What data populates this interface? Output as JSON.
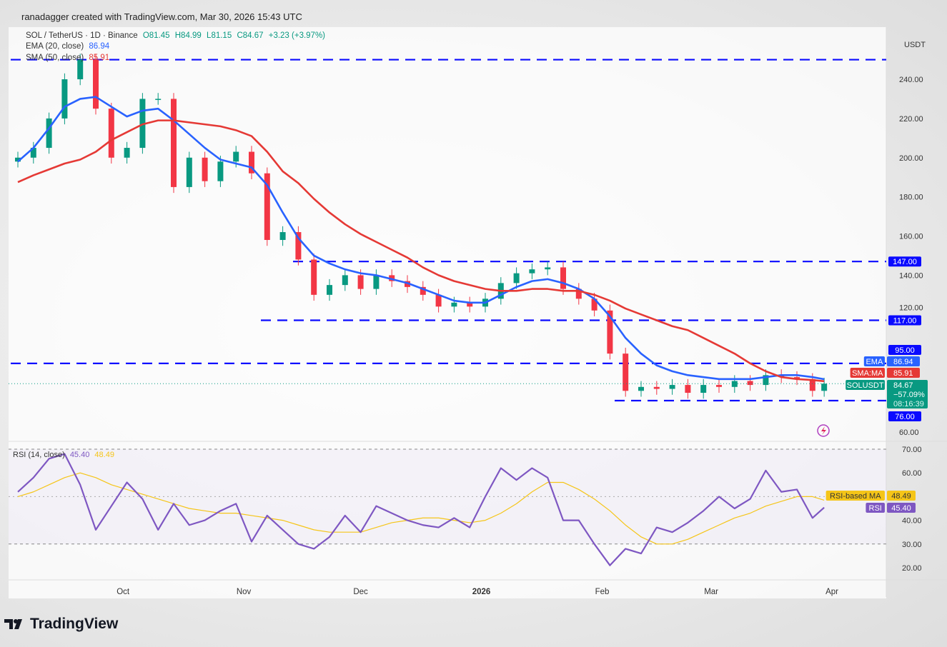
{
  "credit": "ranadagger created with TradingView.com, Mar 30, 2026 15:43 UTC",
  "legend": {
    "symbol": "SOL / TetherUS · 1D · Binance",
    "open": "O81.45",
    "high": "H84.99",
    "low": "L81.15",
    "close": "C84.67",
    "change": "+3.23 (+3.97%)",
    "ema_label": "EMA (20, close)",
    "ema_value": "86.94",
    "sma_label": "SMA (50, close)",
    "sma_value": "85.91",
    "rsi_label": "RSI (14, close)",
    "rsi_value": "45.40",
    "rsi_ma_value": "48.49"
  },
  "currency": "USDT",
  "logo_text": "TradingView",
  "colors": {
    "up": "#089981",
    "down": "#f23645",
    "ema": "#2962ff",
    "sma": "#e53935",
    "rsi": "#7e57c2",
    "rsi_ma": "#f5c518",
    "level": "#0a0aff"
  },
  "chart_data": [
    {
      "type": "candlestick",
      "title": "SOL / TetherUS · 1D · Binance",
      "ylabel": "USDT",
      "ylim": [
        60,
        250
      ],
      "y_ticks": [
        "240.00",
        "220.00",
        "200.00",
        "180.00",
        "160.00",
        "140.00",
        "120.00",
        "60.00"
      ],
      "x_ticks": [
        "Oct",
        "Nov",
        "Dec",
        "2026",
        "Feb",
        "Mar",
        "Apr"
      ],
      "grid": false,
      "dates": [
        "2025-09-04",
        "2025-09-08",
        "2025-09-12",
        "2025-09-16",
        "2025-09-20",
        "2025-09-24",
        "2025-09-28",
        "2025-10-02",
        "2025-10-06",
        "2025-10-10",
        "2025-10-14",
        "2025-10-18",
        "2025-10-22",
        "2025-10-26",
        "2025-10-30",
        "2025-11-03",
        "2025-11-07",
        "2025-11-11",
        "2025-11-15",
        "2025-11-19",
        "2025-11-23",
        "2025-11-27",
        "2025-12-01",
        "2025-12-05",
        "2025-12-09",
        "2025-12-13",
        "2025-12-17",
        "2025-12-21",
        "2025-12-25",
        "2025-12-29",
        "2026-01-02",
        "2026-01-06",
        "2026-01-10",
        "2026-01-14",
        "2026-01-18",
        "2026-01-22",
        "2026-01-26",
        "2026-01-30",
        "2026-02-03",
        "2026-02-07",
        "2026-02-11",
        "2026-02-15",
        "2026-02-19",
        "2026-02-23",
        "2026-02-27",
        "2026-03-03",
        "2026-03-07",
        "2026-03-11",
        "2026-03-15",
        "2026-03-19",
        "2026-03-23",
        "2026-03-27",
        "2026-03-30"
      ],
      "close": [
        200,
        205,
        220,
        240,
        250,
        225,
        200,
        205,
        230,
        230,
        185,
        200,
        188,
        198,
        203,
        192,
        158,
        162,
        148,
        130,
        135,
        140,
        133,
        140,
        137,
        134,
        130,
        124,
        126,
        124,
        128,
        136,
        141,
        143,
        144,
        133,
        128,
        122,
        100,
        81,
        83,
        82,
        84,
        80,
        84,
        83,
        86,
        84,
        89,
        88,
        87,
        81,
        84.67
      ],
      "series": [
        {
          "name": "EMA",
          "values": [
            198,
            205,
            215,
            226,
            230,
            231,
            226,
            221,
            224,
            225,
            219,
            212,
            205,
            199,
            197,
            195,
            186,
            172,
            159,
            150,
            146,
            143,
            141,
            140,
            138,
            136,
            133,
            130,
            127,
            126,
            126,
            130,
            134,
            137,
            138,
            136,
            133,
            128,
            119,
            108,
            100,
            94,
            91,
            89,
            88,
            87,
            87,
            87,
            88,
            89,
            89,
            88,
            86.94
          ]
        },
        {
          "name": "SMA:MA",
          "values": [
            187.5,
            191,
            194,
            197,
            199,
            203,
            209,
            213,
            217,
            219,
            219,
            218,
            217,
            216,
            214,
            211,
            203,
            193,
            187,
            179,
            172,
            166,
            161,
            157,
            153,
            149,
            144,
            140,
            137,
            135,
            133,
            132,
            132,
            133,
            133,
            132,
            132,
            130,
            127,
            123,
            120,
            117,
            114,
            112,
            108,
            104,
            100,
            95,
            91,
            88,
            87,
            86.5,
            85.91
          ]
        }
      ],
      "levels": [
        {
          "value": 250,
          "label": ""
        },
        {
          "value": 147,
          "label": "147.00"
        },
        {
          "value": 117,
          "label": "117.00"
        },
        {
          "value": 95,
          "label": "95.00"
        },
        {
          "value": 76,
          "label": "76.00"
        }
      ],
      "price_tags": {
        "ema": {
          "name": "EMA",
          "value": "86.94"
        },
        "sma": {
          "name": "SMA:MA",
          "value": "85.91"
        },
        "last": {
          "name": "SOLUSDT",
          "value": "84.67",
          "change": "−57.09%",
          "countdown": "08:16:39"
        }
      }
    },
    {
      "type": "line",
      "title": "RSI (14, close)",
      "ylim": [
        15,
        72
      ],
      "y_ticks": [
        "70.00",
        "60.00",
        "40.00",
        "30.00",
        "20.00"
      ],
      "bands": [
        70,
        30
      ],
      "series": [
        {
          "name": "RSI",
          "values": [
            52,
            58,
            66,
            68,
            55,
            36,
            46,
            56,
            49,
            36,
            47,
            38,
            40,
            44,
            47,
            31,
            42,
            36,
            30,
            28,
            33,
            42,
            35,
            46,
            43,
            40,
            38,
            37,
            41,
            37,
            50,
            62,
            57,
            62,
            58,
            40,
            40,
            30,
            21,
            28,
            26,
            37,
            35,
            39,
            44,
            50,
            45,
            49,
            61,
            52,
            53,
            41,
            45.4
          ]
        },
        {
          "name": "RSI-based MA",
          "values": [
            50,
            52,
            55,
            58,
            60,
            58,
            55,
            53,
            51,
            49,
            47,
            45,
            44,
            43,
            43,
            42,
            41,
            40,
            38,
            36,
            35,
            35,
            35,
            37,
            39,
            40,
            41,
            41,
            40,
            39,
            40,
            43,
            47,
            52,
            56,
            56,
            53,
            49,
            44,
            38,
            33,
            30,
            30,
            32,
            35,
            38,
            41,
            43,
            46,
            48,
            50,
            50,
            48.49
          ]
        }
      ],
      "tags": {
        "ma": {
          "name": "RSI-based MA",
          "value": "48.49"
        },
        "rsi": {
          "name": "RSI",
          "value": "45.40"
        }
      }
    }
  ]
}
